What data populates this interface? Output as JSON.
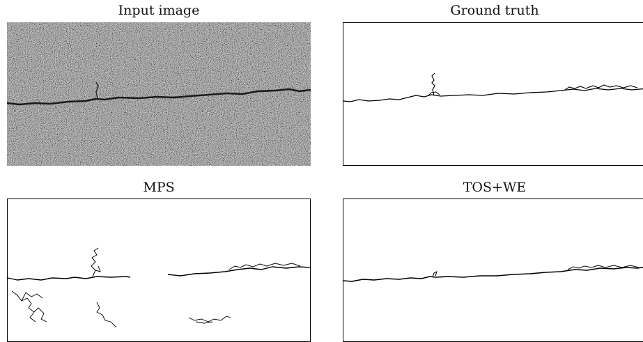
{
  "panels": [
    {
      "title": "Input image",
      "kind": "photo"
    },
    {
      "title": "Ground truth",
      "kind": "crack-map"
    },
    {
      "title": "MPS",
      "kind": "crack-map"
    },
    {
      "title": "TOS+WE",
      "kind": "crack-map"
    }
  ]
}
